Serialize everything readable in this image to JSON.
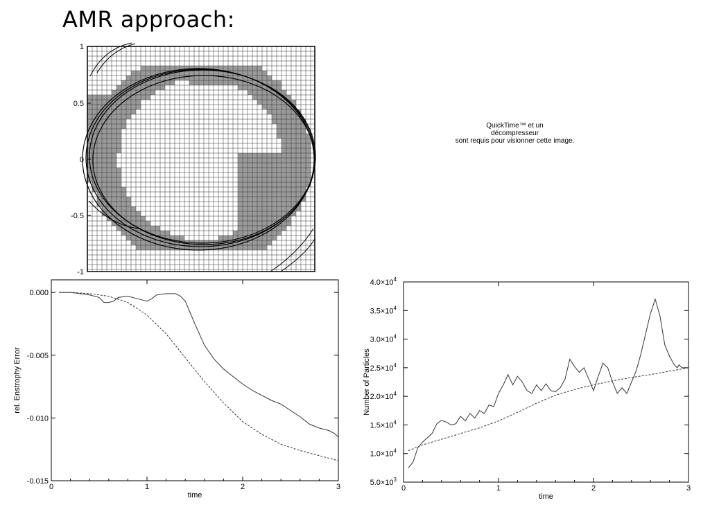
{
  "slide": {
    "title": "AMR approach:"
  },
  "amr_grid": {
    "y_ticks": [
      "1",
      "0.5",
      "0",
      "-0.5",
      "-1"
    ],
    "refined_color": "#9a9a9a",
    "grid_color": "#333333"
  },
  "quicktime_placeholder": {
    "line1": "QuickTime™ et un",
    "line2": "décompresseur",
    "line3": "sont requis pour visionner cette image."
  },
  "chart_data": [
    {
      "type": "line",
      "xlabel": "time",
      "ylabel": "rel. Enstrophy Error",
      "xlim": [
        0,
        3
      ],
      "ylim": [
        -0.015,
        0.001
      ],
      "x_ticks": [
        0,
        1,
        2,
        3
      ],
      "x_tick_labels": [
        "0",
        "1",
        "2",
        "3"
      ],
      "y_ticks": [
        0.0,
        -0.005,
        -0.01,
        -0.015
      ],
      "y_tick_labels": [
        "0.000",
        "-0.005",
        "-0.010",
        "-0.015"
      ],
      "grid": false,
      "series": [
        {
          "style": "solid",
          "x": [
            0.08,
            0.2,
            0.3,
            0.4,
            0.5,
            0.55,
            0.6,
            0.65,
            0.7,
            0.8,
            0.9,
            1.0,
            1.05,
            1.1,
            1.2,
            1.3,
            1.35,
            1.4,
            1.5,
            1.6,
            1.7,
            1.8,
            1.9,
            2.0,
            2.1,
            2.2,
            2.3,
            2.4,
            2.5,
            2.6,
            2.7,
            2.8,
            2.9,
            2.95,
            3.0
          ],
          "y": [
            0.0,
            0.0,
            -0.0001,
            -0.0002,
            -0.0004,
            -0.0008,
            -0.0008,
            -0.0007,
            -0.0004,
            -0.0003,
            -0.0005,
            -0.0007,
            -0.0005,
            -0.0002,
            -0.0001,
            -0.0001,
            -0.0003,
            -0.0007,
            -0.0025,
            -0.0042,
            -0.0053,
            -0.0061,
            -0.0067,
            -0.0073,
            -0.0078,
            -0.0082,
            -0.0086,
            -0.0089,
            -0.0094,
            -0.0099,
            -0.0105,
            -0.0108,
            -0.011,
            -0.0112,
            -0.0115
          ]
        },
        {
          "style": "dashed",
          "x": [
            0.08,
            0.2,
            0.4,
            0.6,
            0.8,
            1.0,
            1.2,
            1.4,
            1.6,
            1.8,
            2.0,
            2.2,
            2.4,
            2.6,
            2.8,
            3.0
          ],
          "y": [
            0.0,
            0.0,
            -0.0001,
            -0.0003,
            -0.0008,
            -0.0018,
            -0.0033,
            -0.0052,
            -0.0071,
            -0.0088,
            -0.0103,
            -0.0113,
            -0.0121,
            -0.0126,
            -0.013,
            -0.0134
          ]
        }
      ]
    },
    {
      "type": "line",
      "xlabel": "time",
      "ylabel": "Number of Particles",
      "xlim": [
        0,
        3
      ],
      "ylim": [
        5000,
        40000
      ],
      "x_ticks": [
        0,
        1,
        2,
        3
      ],
      "x_tick_labels": [
        "0",
        "1",
        "2",
        "3"
      ],
      "y_ticks": [
        5000,
        10000,
        15000,
        20000,
        25000,
        30000,
        35000,
        40000
      ],
      "y_tick_mantissas": [
        "5.0",
        "1.0",
        "1.5",
        "2.0",
        "2.5",
        "3.0",
        "3.5",
        "4.0"
      ],
      "y_tick_exponents": [
        "3",
        "4",
        "4",
        "4",
        "4",
        "4",
        "4",
        "4"
      ],
      "y_tick_base": "×10",
      "grid": false,
      "series": [
        {
          "style": "solid",
          "x": [
            0.05,
            0.1,
            0.15,
            0.2,
            0.3,
            0.35,
            0.4,
            0.45,
            0.5,
            0.55,
            0.6,
            0.65,
            0.7,
            0.75,
            0.8,
            0.85,
            0.9,
            0.95,
            1.0,
            1.05,
            1.1,
            1.15,
            1.2,
            1.25,
            1.3,
            1.35,
            1.4,
            1.45,
            1.5,
            1.55,
            1.6,
            1.65,
            1.7,
            1.75,
            1.8,
            1.85,
            1.9,
            1.95,
            2.0,
            2.05,
            2.1,
            2.15,
            2.2,
            2.25,
            2.3,
            2.35,
            2.4,
            2.45,
            2.5,
            2.55,
            2.6,
            2.65,
            2.7,
            2.75,
            2.8,
            2.85,
            2.88,
            2.9,
            2.93,
            2.96,
            3.0
          ],
          "y": [
            7500,
            8500,
            11000,
            12000,
            13500,
            15200,
            15800,
            15500,
            15000,
            15200,
            16500,
            15700,
            17000,
            16200,
            17500,
            17000,
            18500,
            18200,
            20500,
            22000,
            23800,
            22000,
            23500,
            22500,
            21000,
            20500,
            22000,
            21000,
            22200,
            21000,
            20800,
            21500,
            23000,
            26500,
            25200,
            24200,
            25000,
            23000,
            21000,
            23500,
            25800,
            25000,
            22500,
            20500,
            21500,
            20500,
            22500,
            24500,
            27500,
            31000,
            34500,
            37000,
            34000,
            29000,
            27000,
            25500,
            25000,
            25500,
            25000,
            25000,
            25000
          ]
        },
        {
          "style": "dashed",
          "x": [
            0.05,
            0.2,
            0.4,
            0.6,
            0.8,
            1.0,
            1.2,
            1.4,
            1.6,
            1.8,
            2.0,
            2.2,
            2.4,
            2.6,
            2.8,
            3.0
          ],
          "y": [
            10500,
            11500,
            12500,
            13500,
            14500,
            15700,
            17200,
            18800,
            20200,
            21200,
            22000,
            22700,
            23300,
            23800,
            24400,
            25000
          ]
        }
      ]
    }
  ]
}
